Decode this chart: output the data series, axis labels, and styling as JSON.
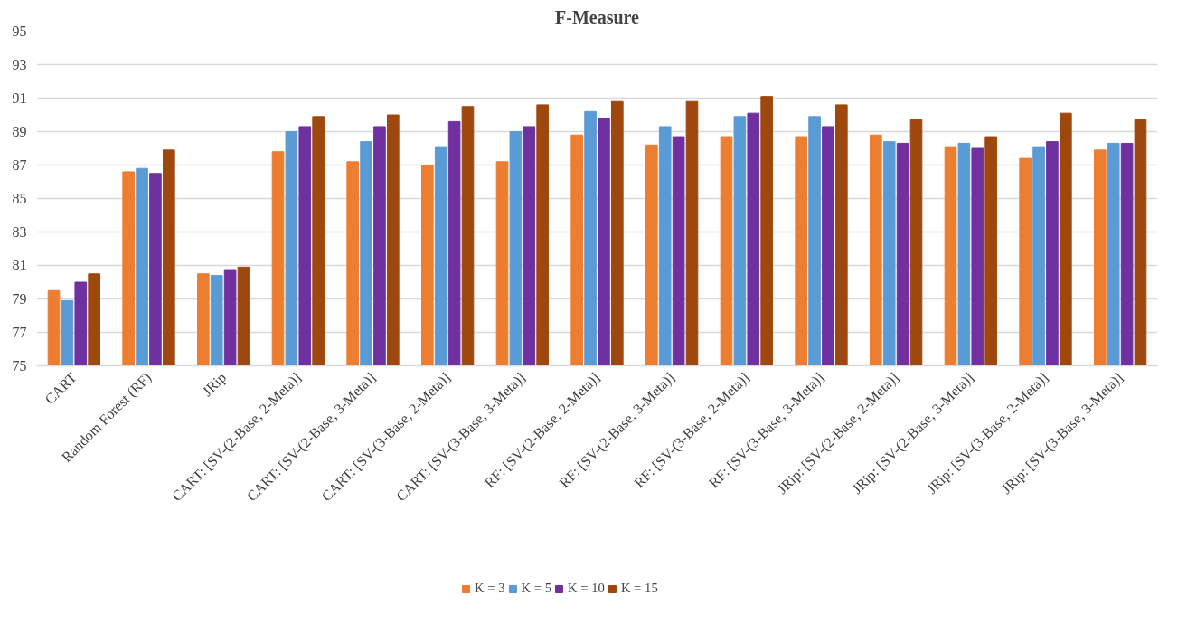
{
  "chart_data": {
    "type": "bar",
    "title": "F-Measure",
    "categories": [
      "CART",
      "Random Forest (RF)",
      "JRip",
      "CART: [SV-(2-Base, 2-Meta)]",
      "CART: [SV-(2-Base, 3-Meta)]",
      "CART: [SV-(3-Base, 2-Meta)]",
      "CART: [SV-(3-Base, 3-Meta)]",
      "RF: [SV-(2-Base, 2-Meta)]",
      "RF: [SV-(2-Base, 3-Meta)]",
      "RF: [SV-(3-Base, 2-Meta)]",
      "RF: [SV-(3-Base, 3-Meta)]",
      "JRip: [SV-(2-Base, 2-Meta)]",
      "JRip: [SV-(2-Base, 3-Meta)]",
      "JRip: [SV-(3-Base, 2-Meta)]",
      "JRip: [SV-(3-Base, 3-Meta)]"
    ],
    "series": [
      {
        "name": "K = 3",
        "color": "#ed7d31",
        "values": [
          79.5,
          86.6,
          80.5,
          87.8,
          87.2,
          87.0,
          87.2,
          88.8,
          88.2,
          88.7,
          88.7,
          88.8,
          88.1,
          87.4,
          87.9
        ]
      },
      {
        "name": "K = 5",
        "color": "#5b9bd5",
        "values": [
          78.9,
          86.8,
          80.4,
          89.0,
          88.4,
          88.1,
          89.0,
          90.2,
          89.3,
          89.9,
          89.9,
          88.4,
          88.3,
          88.1,
          88.3
        ]
      },
      {
        "name": "K = 10",
        "color": "#7030a0",
        "values": [
          80.0,
          86.5,
          80.7,
          89.3,
          89.3,
          89.6,
          89.3,
          89.8,
          88.7,
          90.1,
          89.3,
          88.3,
          88.0,
          88.4,
          88.3
        ]
      },
      {
        "name": "K = 15",
        "color": "#9e480e",
        "values": [
          80.5,
          87.9,
          80.9,
          89.9,
          90.0,
          90.5,
          90.6,
          90.8,
          90.8,
          91.1,
          90.6,
          89.7,
          88.7,
          90.1,
          89.7
        ]
      }
    ],
    "ylim": [
      75,
      95
    ],
    "yticks": [
      75,
      77,
      79,
      81,
      83,
      85,
      87,
      89,
      91,
      93,
      95
    ],
    "grid": "y",
    "legend": "bottom"
  }
}
